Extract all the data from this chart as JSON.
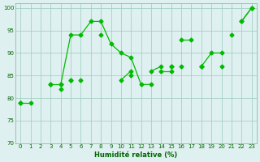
{
  "xlabel": "Humidité relative (%)",
  "bg_color": "#dff0f0",
  "grid_color": "#99ccbb",
  "line_color": "#00bb00",
  "marker": "D",
  "markersize": 2.5,
  "linewidth": 0.9,
  "xlim": [
    -0.5,
    23.5
  ],
  "ylim": [
    70,
    101
  ],
  "yticks": [
    70,
    75,
    80,
    85,
    90,
    95,
    100
  ],
  "xticks": [
    0,
    1,
    2,
    3,
    4,
    5,
    6,
    7,
    8,
    9,
    10,
    11,
    12,
    13,
    14,
    15,
    16,
    17,
    18,
    19,
    20,
    21,
    22,
    23
  ],
  "series": [
    [
      79,
      79,
      null,
      null,
      null,
      null,
      null,
      null,
      null,
      null,
      null,
      null,
      null,
      null,
      null,
      null,
      null,
      null,
      null,
      null,
      null,
      null,
      null,
      null
    ],
    [
      null,
      null,
      null,
      83,
      83,
      null,
      null,
      null,
      null,
      null,
      null,
      null,
      null,
      null,
      null,
      null,
      null,
      null,
      null,
      null,
      null,
      null,
      null,
      null
    ],
    [
      null,
      null,
      null,
      null,
      83,
      94,
      94,
      97,
      97,
      92,
      90,
      89,
      83,
      83,
      null,
      null,
      null,
      null,
      null,
      null,
      null,
      null,
      null,
      null
    ],
    [
      null,
      null,
      null,
      null,
      null,
      null,
      null,
      null,
      null,
      null,
      null,
      null,
      null,
      null,
      null,
      null,
      93,
      93,
      null,
      null,
      null,
      null,
      97,
      100
    ],
    [
      null,
      null,
      null,
      null,
      null,
      null,
      null,
      null,
      null,
      null,
      null,
      null,
      null,
      null,
      null,
      null,
      null,
      null,
      null,
      null,
      null,
      94,
      null,
      null
    ],
    [
      79,
      null,
      null,
      83,
      null,
      84,
      null,
      null,
      null,
      null,
      null,
      null,
      null,
      null,
      null,
      87,
      null,
      null,
      87,
      90,
      90,
      null,
      97,
      100
    ],
    [
      null,
      null,
      null,
      null,
      82,
      null,
      84,
      null,
      null,
      null,
      null,
      85,
      null,
      null,
      86,
      86,
      null,
      null,
      87,
      null,
      null,
      null,
      null,
      null
    ],
    [
      null,
      null,
      null,
      null,
      null,
      84,
      null,
      null,
      94,
      null,
      84,
      86,
      null,
      86,
      87,
      null,
      87,
      null,
      null,
      null,
      87,
      null,
      null,
      null
    ],
    [
      null,
      null,
      null,
      null,
      null,
      null,
      null,
      null,
      null,
      null,
      null,
      null,
      null,
      null,
      null,
      87,
      null,
      null,
      87,
      null,
      null,
      null,
      null,
      null
    ]
  ]
}
